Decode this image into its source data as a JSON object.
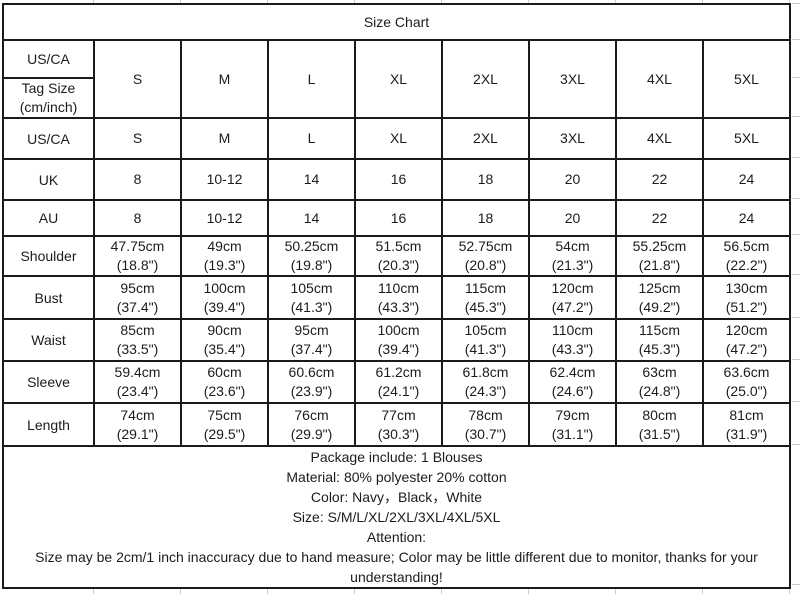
{
  "table": {
    "title": "Size Chart",
    "corner": {
      "region_label": "US/CA",
      "tag_size_label": "Tag Size\n(cm/inch)"
    },
    "size_headers": [
      "S",
      "M",
      "L",
      "XL",
      "2XL",
      "3XL",
      "4XL",
      "5XL"
    ],
    "rows": [
      {
        "label": "US/CA",
        "shaded": true,
        "values": [
          "S",
          "M",
          "L",
          "XL",
          "2XL",
          "3XL",
          "4XL",
          "5XL"
        ]
      },
      {
        "label": "UK",
        "shaded": true,
        "values": [
          "8",
          "10-12",
          "14",
          "16",
          "18",
          "20",
          "22",
          "24"
        ]
      },
      {
        "label": "AU",
        "shaded": true,
        "values": [
          "8",
          "10-12",
          "14",
          "16",
          "18",
          "20",
          "22",
          "24"
        ]
      },
      {
        "label": "Shoulder",
        "shaded": false,
        "values": [
          "47.75cm\n(18.8\")",
          "49cm\n(19.3\")",
          "50.25cm\n(19.8\")",
          "51.5cm\n(20.3\")",
          "52.75cm\n(20.8\")",
          "54cm\n(21.3\")",
          "55.25cm\n(21.8\")",
          "56.5cm\n(22.2\")"
        ]
      },
      {
        "label": "Bust",
        "shaded": false,
        "values": [
          "95cm\n(37.4\")",
          "100cm\n(39.4\")",
          "105cm\n(41.3\")",
          "110cm\n(43.3\")",
          "115cm\n(45.3\")",
          "120cm\n(47.2\")",
          "125cm\n(49.2\")",
          "130cm\n(51.2\")"
        ]
      },
      {
        "label": "Waist",
        "shaded": false,
        "values": [
          "85cm\n(33.5\")",
          "90cm\n(35.4\")",
          "95cm\n(37.4\")",
          "100cm\n(39.4\")",
          "105cm\n(41.3\")",
          "110cm\n(43.3\")",
          "115cm\n(45.3\")",
          "120cm\n(47.2\")"
        ]
      },
      {
        "label": "Sleeve",
        "shaded": false,
        "values": [
          "59.4cm\n(23.4\")",
          "60cm\n(23.6\")",
          "60.6cm\n(23.9\")",
          "61.2cm\n(24.1\")",
          "61.8cm\n(24.3\")",
          "62.4cm\n(24.6\")",
          "63cm\n(24.8\")",
          "63.6cm\n(25.0\")"
        ]
      },
      {
        "label": "Length",
        "shaded": false,
        "values": [
          "74cm\n(29.1\")",
          "75cm\n(29.5\")",
          "76cm\n(29.9\")",
          "77cm\n(30.3\")",
          "78cm\n(30.7\")",
          "79cm\n(31.1\")",
          "80cm\n(31.5\")",
          "81cm\n(31.9\")"
        ]
      }
    ]
  },
  "notes": {
    "lines": [
      "Package include: 1 Blouses",
      "Material: 80% polyester 20% cotton",
      "Color: Navy，Black，White",
      "Size: S/M/L/XL/2XL/3XL/4XL/5XL",
      "Attention:",
      "Size may be 2cm/1 inch inaccuracy due to hand measure; Color may be little different due to monitor, thanks for your understanding!"
    ]
  },
  "colors": {
    "header_fill": "#a2b2b0",
    "cell_fill": "#ffffff",
    "border": "#1a1a1a",
    "text": "#1c1c1c",
    "gridline": "#c9cdcd"
  }
}
